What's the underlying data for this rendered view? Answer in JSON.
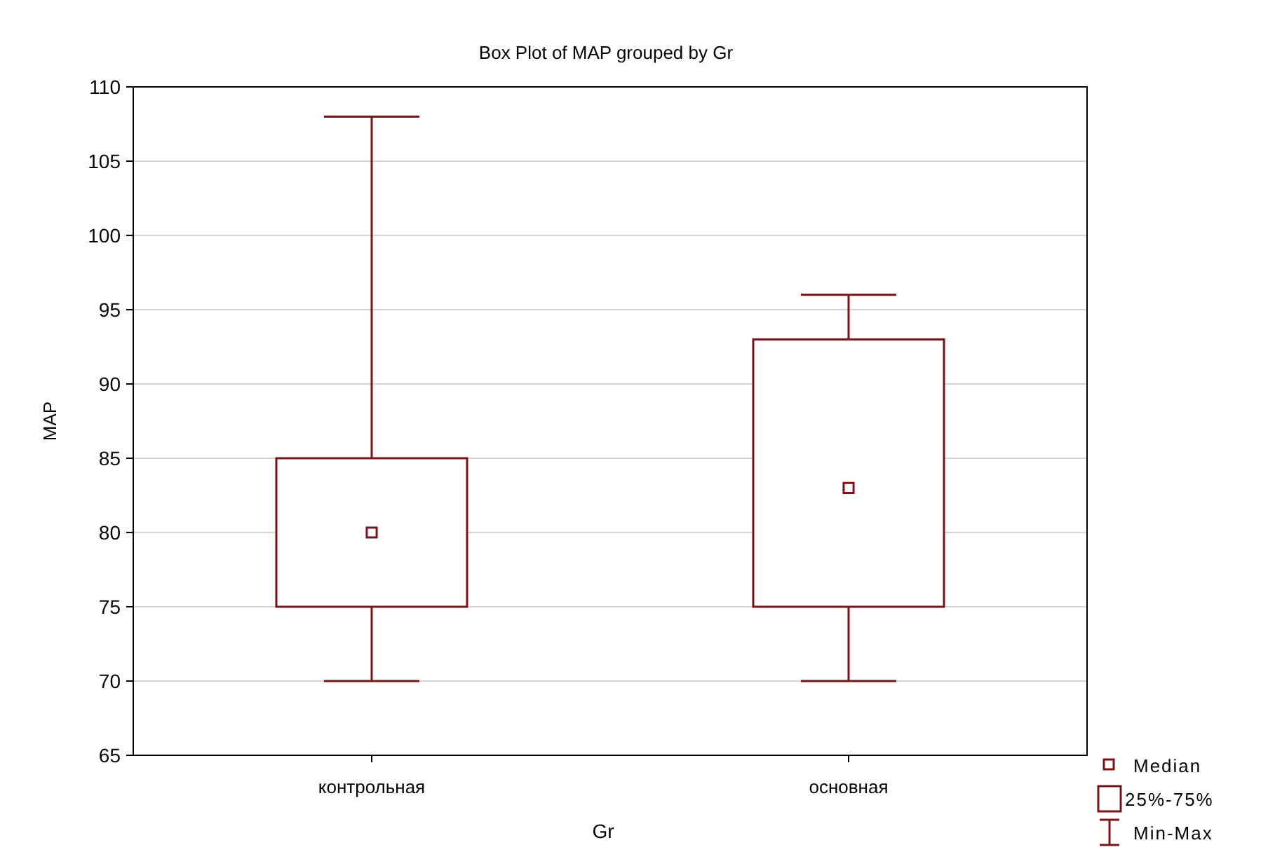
{
  "chart_data": {
    "type": "box",
    "title": "Box Plot of MAP grouped by Gr",
    "xlabel": "Gr",
    "ylabel": "MAP",
    "categories": [
      "контрольная",
      "основная"
    ],
    "color": "#7b1416",
    "boxes": [
      {
        "low": 70,
        "q1": 75,
        "median": 80,
        "q3": 85,
        "high": 108
      },
      {
        "low": 70,
        "q1": 75,
        "median": 83,
        "q3": 93,
        "high": 96
      }
    ],
    "ylim": [
      65,
      110
    ],
    "yticks": [
      65,
      70,
      75,
      80,
      85,
      90,
      95,
      100,
      105,
      110
    ],
    "grid": "y",
    "marker": "square",
    "annotations": [
      "Median",
      "25%-75%",
      "Min-Max"
    ]
  }
}
